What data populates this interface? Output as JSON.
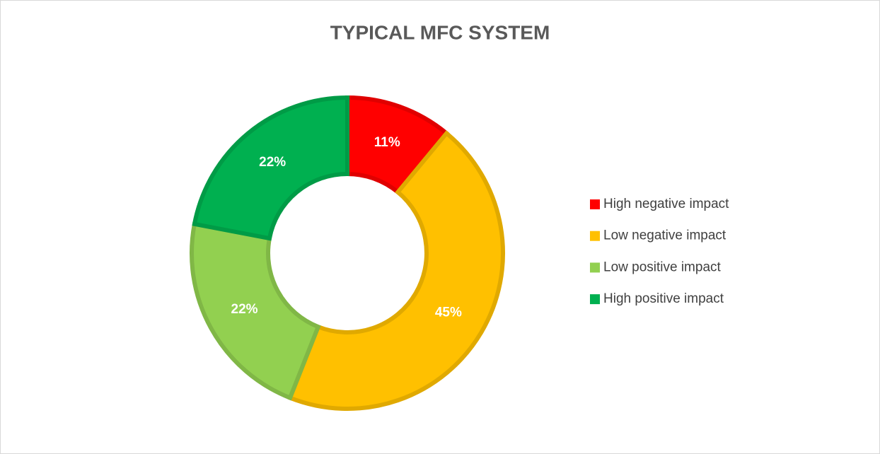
{
  "chart_data": {
    "type": "doughnut",
    "title": "TYPICAL MFC SYSTEM",
    "categories": [
      "High negative impact",
      "Low negative impact",
      "Low positive impact",
      "High positive impact"
    ],
    "values": [
      11,
      45,
      22,
      22
    ],
    "value_labels": [
      "11%",
      "45%",
      "22%",
      "22%"
    ],
    "colors": [
      "#ff0000",
      "#ffc000",
      "#92d050",
      "#00b050"
    ],
    "legend": "right"
  }
}
